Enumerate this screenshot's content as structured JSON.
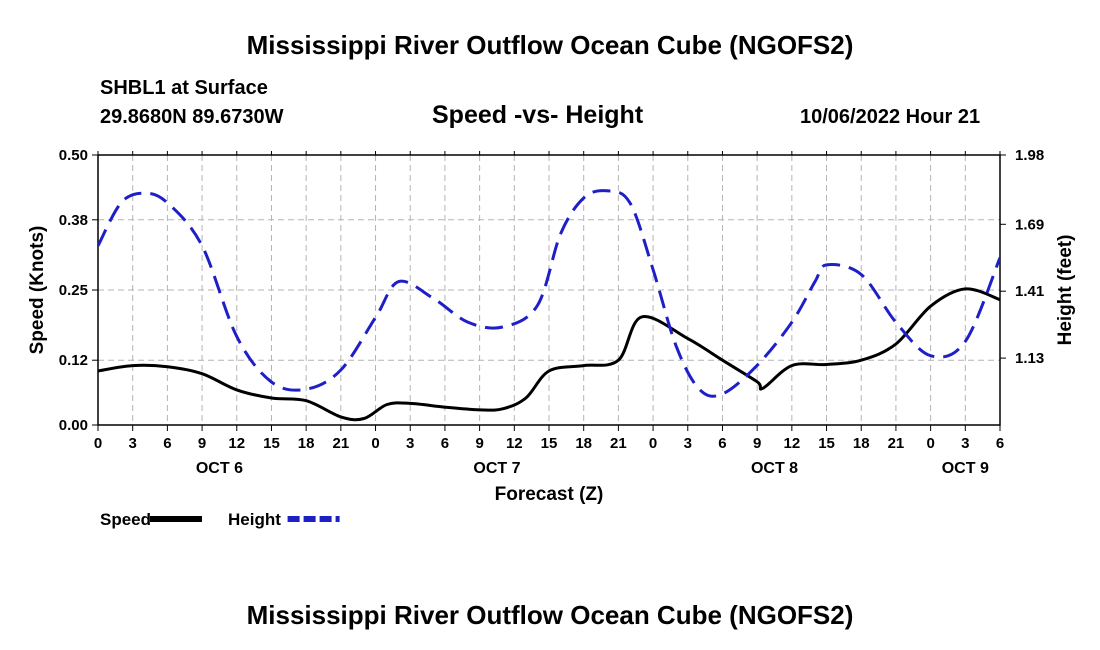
{
  "header": {
    "title": "Mississippi River Outflow Ocean Cube (NGOFS2)",
    "station": "SHBL1 at Surface",
    "coords": "29.8680N  89.6730W",
    "subtitle": "Speed -vs- Height",
    "datetime": "10/06/2022 Hour 21",
    "footer_title": "Mississippi River Outflow Ocean Cube (NGOFS2)"
  },
  "chart_data": {
    "type": "line",
    "title": "Speed -vs- Height",
    "xlabel": "Forecast (Z)",
    "ylabel": "Speed (Knots)",
    "y2label": "Height (feet)",
    "x_range_hours": [
      0,
      78
    ],
    "x_tick_labels": [
      "0",
      "3",
      "6",
      "9",
      "12",
      "15",
      "18",
      "21",
      "0",
      "3",
      "6",
      "9",
      "12",
      "15",
      "18",
      "21",
      "0",
      "3",
      "6",
      "9",
      "12",
      "15",
      "18",
      "21",
      "0",
      "3",
      "6"
    ],
    "day_labels": [
      {
        "label": "OCT 6",
        "hour": 10.5
      },
      {
        "label": "OCT 7",
        "hour": 34.5
      },
      {
        "label": "OCT 8",
        "hour": 58.5
      },
      {
        "label": "OCT 9",
        "hour": 75
      }
    ],
    "ylim": [
      0,
      0.5
    ],
    "y_ticks": [
      0.0,
      0.12,
      0.25,
      0.38,
      0.5
    ],
    "y_tick_labels": [
      "0.00",
      "0.12",
      "0.25",
      "0.38",
      "0.50"
    ],
    "y2lim": [
      0.85,
      1.98
    ],
    "y2_ticks": [
      1.13,
      1.41,
      1.69,
      1.98
    ],
    "y2_tick_labels": [
      "1.13",
      "1.41",
      "1.69",
      "1.98"
    ],
    "grid": true,
    "series": [
      {
        "name": "Speed",
        "axis": "left",
        "color": "#000000",
        "dash": false,
        "x": [
          0,
          3,
          6,
          9,
          12,
          15,
          18,
          21,
          23,
          25,
          27,
          30,
          33,
          35,
          37,
          39,
          42,
          45,
          47,
          51,
          54,
          57,
          57.5,
          60,
          63,
          66,
          69,
          72,
          75,
          78
        ],
        "y": [
          0.1,
          0.11,
          0.108,
          0.095,
          0.065,
          0.05,
          0.045,
          0.015,
          0.012,
          0.038,
          0.04,
          0.033,
          0.028,
          0.03,
          0.05,
          0.1,
          0.11,
          0.12,
          0.2,
          0.16,
          0.12,
          0.08,
          0.068,
          0.11,
          0.112,
          0.12,
          0.15,
          0.22,
          0.252,
          0.232
        ]
      },
      {
        "name": "Height",
        "axis": "right",
        "color": "#1f1fc8",
        "dash": true,
        "x": [
          0,
          2,
          4,
          6,
          9,
          12,
          15,
          18,
          21,
          24,
          26,
          29,
          32,
          35,
          38,
          40,
          42,
          44,
          46,
          48,
          50,
          52,
          54,
          57,
          60,
          62,
          63,
          66,
          69,
          72,
          75,
          78
        ],
        "y": [
          1.6,
          1.78,
          1.82,
          1.78,
          1.6,
          1.22,
          1.03,
          1.0,
          1.08,
          1.3,
          1.45,
          1.38,
          1.28,
          1.26,
          1.35,
          1.65,
          1.8,
          1.83,
          1.78,
          1.5,
          1.18,
          1.0,
          0.98,
          1.1,
          1.28,
          1.45,
          1.52,
          1.48,
          1.28,
          1.14,
          1.2,
          1.55
        ]
      }
    ],
    "legend": [
      {
        "name": "Speed",
        "color": "#000000",
        "dash": false
      },
      {
        "name": "Height",
        "color": "#1f1fc8",
        "dash": true
      }
    ]
  }
}
